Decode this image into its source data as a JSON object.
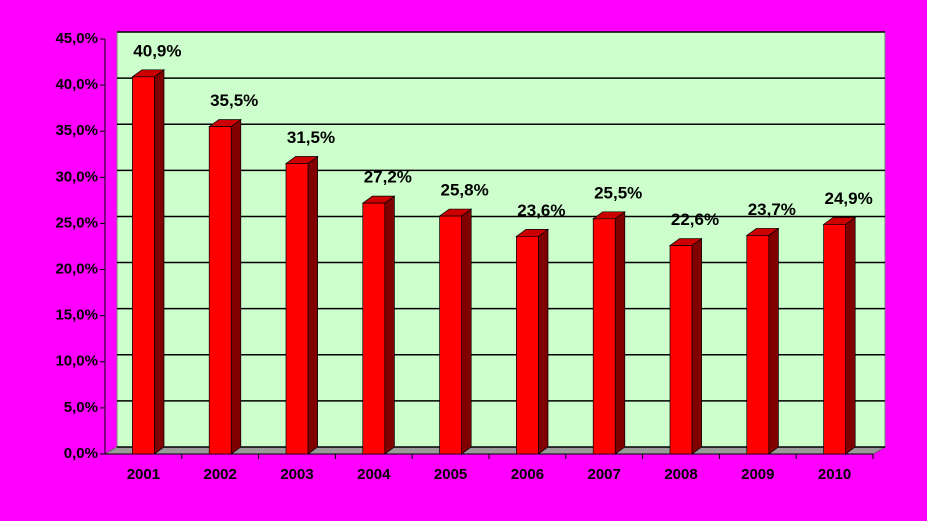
{
  "chart_data": {
    "type": "bar",
    "categories": [
      "2001",
      "2002",
      "2003",
      "2004",
      "2005",
      "2006",
      "2007",
      "2008",
      "2009",
      "2010"
    ],
    "values": [
      40.9,
      35.5,
      31.5,
      27.2,
      25.8,
      23.6,
      25.5,
      22.6,
      23.7,
      24.9
    ],
    "value_labels": [
      "40,9%",
      "35,5%",
      "31,5%",
      "27,2%",
      "25,8%",
      "23,6%",
      "25,5%",
      "22,6%",
      "23,7%",
      "24,9%"
    ],
    "color": "#ff0000",
    "ylim": [
      0,
      45
    ],
    "yticks": [
      {
        "value": 0,
        "label": "0,0%"
      },
      {
        "value": 5,
        "label": "5,0%"
      },
      {
        "value": 10,
        "label": "10,0%"
      },
      {
        "value": 15,
        "label": "15,0%"
      },
      {
        "value": 20,
        "label": "20,0%"
      },
      {
        "value": 25,
        "label": "25,0%"
      },
      {
        "value": 30,
        "label": "30,0%"
      },
      {
        "value": 35,
        "label": "35,0%"
      },
      {
        "value": 40,
        "label": "40,0%"
      },
      {
        "value": 45,
        "label": "45,0%"
      }
    ],
    "grid": true
  }
}
